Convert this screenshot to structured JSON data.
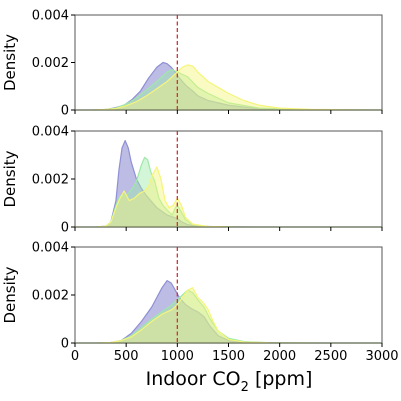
{
  "chart_data": {
    "type": "area",
    "xlabel": "Indoor CO",
    "xlabel_sub": "2",
    "xlabel_suffix": " [ppm]",
    "ylabel": "Density",
    "xlim": [
      0,
      3000
    ],
    "x_ticks": [
      0,
      500,
      1000,
      1500,
      2000,
      2500,
      3000
    ],
    "x_tick_labels": [
      "0",
      "500",
      "1000",
      "1500",
      "2000",
      "2500",
      "3000"
    ],
    "ylim": [
      0,
      0.004
    ],
    "y_ticks": [
      0,
      0.002,
      0.004
    ],
    "y_tick_labels": [
      "0",
      "0.002",
      "0.004"
    ],
    "reference_line_x": 1000,
    "colors": {
      "series_a": "#8f8fd4",
      "series_b": "#9ee8a8",
      "series_c": "#f5f57a",
      "reference_line": "#d93030",
      "axis": "#555555"
    },
    "panels": [
      {
        "series": [
          {
            "x": [
              0,
              150,
              300,
              400,
              480,
              560,
              640,
              720,
              800,
              860,
              900,
              940,
              980,
              1020,
              1080,
              1150,
              1200,
              1300,
              1500,
              1800,
              2300,
              3000
            ],
            "values": [
              0,
              0,
              2e-05,
              0.0001,
              0.0002,
              0.00045,
              0.0008,
              0.00135,
              0.0018,
              0.002,
              0.00195,
              0.0018,
              0.0016,
              0.00135,
              0.00105,
              0.0008,
              0.0006,
              0.0004,
              0.0002,
              5e-05,
              1e-05,
              0
            ]
          },
          {
            "x": [
              0,
              150,
              300,
              400,
              500,
              600,
              700,
              800,
              900,
              950,
              1000,
              1050,
              1100,
              1200,
              1300,
              1500,
              1800,
              2300,
              3000
            ],
            "values": [
              0,
              0,
              2e-05,
              8e-05,
              0.00025,
              0.0005,
              0.00085,
              0.0012,
              0.0016,
              0.0017,
              0.0016,
              0.0015,
              0.0014,
              0.00095,
              0.0007,
              0.0003,
              8e-05,
              1e-05,
              0
            ]
          },
          {
            "x": [
              0,
              150,
              300,
              400,
              500,
              600,
              700,
              800,
              900,
              1000,
              1050,
              1100,
              1150,
              1200,
              1300,
              1400,
              1500,
              1650,
              1800,
              2000,
              2300,
              2600,
              3000
            ],
            "values": [
              0,
              0,
              2e-05,
              6e-05,
              0.00018,
              0.00035,
              0.0006,
              0.0009,
              0.0012,
              0.0016,
              0.0018,
              0.0019,
              0.00185,
              0.0016,
              0.0012,
              0.00095,
              0.0007,
              0.0004,
              0.0002,
              8e-05,
              3e-05,
              1e-05,
              0
            ]
          }
        ]
      },
      {
        "series": [
          {
            "x": [
              0,
              200,
              300,
              350,
              400,
              430,
              460,
              490,
              520,
              550,
              600,
              650,
              700,
              800,
              900,
              1000,
              1050,
              1100,
              1200,
              1400,
              1800,
              3000
            ],
            "values": [
              0,
              0,
              3e-05,
              0.0002,
              0.0011,
              0.0024,
              0.0033,
              0.0036,
              0.0033,
              0.0027,
              0.002,
              0.0016,
              0.0013,
              0.0008,
              0.0005,
              0.00035,
              0.0002,
              0.0001,
              3e-05,
              1e-05,
              0,
              0
            ]
          },
          {
            "x": [
              0,
              200,
              300,
              350,
              400,
              440,
              480,
              520,
              560,
              600,
              650,
              680,
              710,
              740,
              780,
              820,
              860,
              900,
              950,
              980,
              1000,
              1030,
              1080,
              1150,
              1300,
              1600,
              3000
            ],
            "values": [
              0,
              0,
              3e-05,
              0.0002,
              0.0009,
              0.0013,
              0.0013,
              0.0014,
              0.0016,
              0.0019,
              0.0026,
              0.0029,
              0.0028,
              0.0023,
              0.0019,
              0.0012,
              0.0009,
              0.0007,
              0.0005,
              0.0008,
              0.0009,
              0.0007,
              0.0003,
              0.0001,
              2e-05,
              0,
              0
            ]
          },
          {
            "x": [
              0,
              200,
              300,
              350,
              400,
              440,
              480,
              530,
              580,
              630,
              680,
              720,
              760,
              800,
              840,
              880,
              920,
              960,
              1000,
              1040,
              1080,
              1150,
              1300,
              1600,
              3000
            ],
            "values": [
              0,
              0,
              3e-05,
              0.0002,
              0.0008,
              0.0012,
              0.0015,
              0.0011,
              0.0012,
              0.0014,
              0.0015,
              0.0017,
              0.0022,
              0.0025,
              0.002,
              0.0011,
              0.0008,
              0.0009,
              0.0012,
              0.0009,
              0.0004,
              0.00012,
              2e-05,
              0,
              0
            ]
          }
        ]
      },
      {
        "series": [
          {
            "x": [
              0,
              200,
              350,
              450,
              550,
              650,
              750,
              800,
              850,
              900,
              940,
              980,
              1020,
              1080,
              1150,
              1200,
              1260,
              1320,
              1400,
              1500,
              1700,
              2200,
              3000
            ],
            "values": [
              0,
              0,
              2e-05,
              0.0001,
              0.0004,
              0.0009,
              0.0015,
              0.0019,
              0.0023,
              0.0026,
              0.0025,
              0.0022,
              0.0019,
              0.0016,
              0.0014,
              0.0013,
              0.0011,
              0.0007,
              0.0003,
              0.0001,
              2e-05,
              0,
              0
            ]
          },
          {
            "x": [
              0,
              200,
              350,
              450,
              550,
              650,
              750,
              850,
              950,
              1050,
              1100,
              1150,
              1200,
              1260,
              1320,
              1400,
              1500,
              1650,
              1900,
              2400,
              3000
            ],
            "values": [
              0,
              0,
              2e-05,
              0.0001,
              0.0003,
              0.00065,
              0.001,
              0.0013,
              0.0016,
              0.002,
              0.0022,
              0.0021,
              0.0018,
              0.0015,
              0.001,
              0.0005,
              0.0002,
              6e-05,
              1e-05,
              0,
              0
            ]
          },
          {
            "x": [
              0,
              200,
              350,
              450,
              550,
              650,
              750,
              850,
              950,
              1000,
              1050,
              1100,
              1150,
              1200,
              1250,
              1300,
              1350,
              1400,
              1500,
              1650,
              1900,
              2400,
              3000
            ],
            "values": [
              0,
              0,
              2e-05,
              0.0001,
              0.00025,
              0.00055,
              0.0009,
              0.0012,
              0.0014,
              0.0016,
              0.0019,
              0.0022,
              0.0023,
              0.0019,
              0.0017,
              0.0014,
              0.0009,
              0.0005,
              0.00015,
              4e-05,
              1e-05,
              0,
              0
            ]
          }
        ]
      }
    ]
  }
}
